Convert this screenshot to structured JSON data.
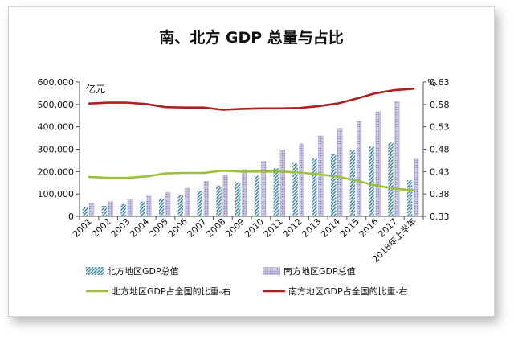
{
  "chart_data": {
    "type": "bar",
    "title": "南、北方 GDP 总量与占比",
    "ylabel": "亿元",
    "y2label": "%",
    "ylim": [
      0,
      600000
    ],
    "y2lim": [
      0.33,
      0.63
    ],
    "yticks": [
      "0",
      "100,000",
      "200,000",
      "300,000",
      "400,000",
      "500,000",
      "600,000"
    ],
    "y2ticks": [
      "0.33",
      "0.38",
      "0.43",
      "0.48",
      "0.53",
      "0.58",
      "0.63"
    ],
    "categories": [
      "2001",
      "2002",
      "2003",
      "2004",
      "2005",
      "2006",
      "2007",
      "2008",
      "2009",
      "2010",
      "2011",
      "2012",
      "2013",
      "2014",
      "2015",
      "2016",
      "2017",
      "2018年上半年"
    ],
    "series": [
      {
        "name": "北方地区GDP总值",
        "kind": "bar",
        "color": "#5b9bb5",
        "values": [
          42000,
          47000,
          55000,
          66000,
          80000,
          95000,
          115000,
          138000,
          152000,
          182000,
          215000,
          238000,
          258000,
          278000,
          295000,
          312000,
          330000,
          162000
        ]
      },
      {
        "name": "南方地区GDP总值",
        "kind": "bar",
        "color": "#a8a3cf",
        "values": [
          60000,
          66000,
          77000,
          92000,
          108000,
          128000,
          158000,
          186000,
          210000,
          248000,
          295000,
          325000,
          360000,
          395000,
          425000,
          468000,
          515000,
          258000
        ]
      },
      {
        "name": "北方地区GDP占全国的比重-右",
        "kind": "line",
        "color": "#9bc03f",
        "values": [
          0.418,
          0.416,
          0.416,
          0.419,
          0.426,
          0.427,
          0.427,
          0.432,
          0.43,
          0.43,
          0.43,
          0.428,
          0.424,
          0.419,
          0.41,
          0.399,
          0.392,
          0.388
        ]
      },
      {
        "name": "南方地区GDP占全国的比重-右",
        "kind": "line",
        "color": "#b01e1e",
        "values": [
          0.582,
          0.584,
          0.584,
          0.581,
          0.574,
          0.573,
          0.573,
          0.568,
          0.57,
          0.571,
          0.571,
          0.572,
          0.576,
          0.582,
          0.593,
          0.605,
          0.612,
          0.615
        ]
      }
    ],
    "legend_position": "bottom",
    "grid": false
  }
}
